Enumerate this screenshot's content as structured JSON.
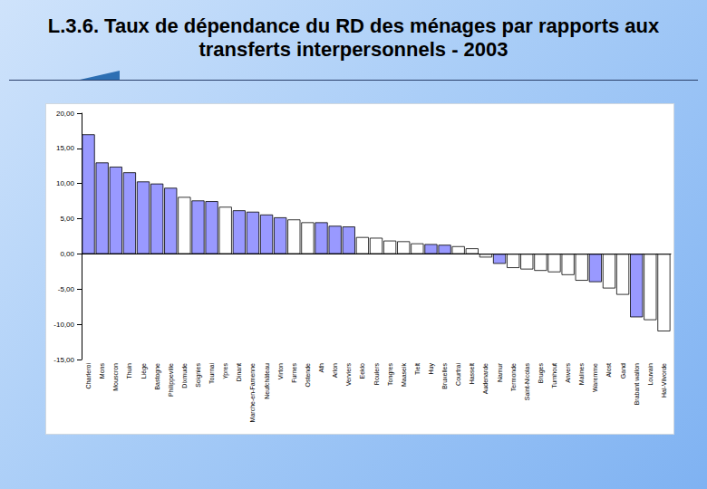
{
  "chart_data": {
    "type": "bar",
    "title": "L.3.6. Taux de dépendance du RD des ménages par rapports aux transferts interpersonnels - 2003",
    "categories": [
      "Charleroi",
      "Mons",
      "Mouscron",
      "Thuin",
      "Liège",
      "Bastogne",
      "Philippeville",
      "Dixmude",
      "Soignies",
      "Tournai",
      "Ypres",
      "Dinant",
      "Marche-en-Famenne",
      "Neufchâteau",
      "Virton",
      "Furnes",
      "Ostende",
      "Ath",
      "Arlon",
      "Verviers",
      "Eeklo",
      "Roulers",
      "Tongres",
      "Maaseik",
      "Tielt",
      "Huy",
      "Bruxelles",
      "Courtrai",
      "Hasselt",
      "Audenarde",
      "Namur",
      "Termonde",
      "Saint-Nicolas",
      "Bruges",
      "Turnhout",
      "Anvers",
      "Malines",
      "Waremme",
      "Alost",
      "Gand",
      "Brabant wallon",
      "Louvain",
      "Hal-Vilvorde"
    ],
    "values": [
      17.0,
      13.0,
      12.4,
      11.6,
      10.3,
      10.0,
      9.4,
      8.1,
      7.6,
      7.5,
      6.7,
      6.2,
      6.0,
      5.6,
      5.2,
      4.9,
      4.5,
      4.5,
      4.0,
      3.9,
      2.4,
      2.3,
      1.9,
      1.8,
      1.5,
      1.4,
      1.3,
      1.1,
      0.8,
      -0.5,
      -1.4,
      -2.0,
      -2.2,
      -2.4,
      -2.6,
      -3.0,
      -3.8,
      -4.0,
      -4.9,
      -5.8,
      -9.0,
      -9.4,
      -11.0
    ],
    "colors": [
      "#9999ff",
      "#9999ff",
      "#9999ff",
      "#9999ff",
      "#9999ff",
      "#9999ff",
      "#9999ff",
      "#ffffff",
      "#9999ff",
      "#9999ff",
      "#ffffff",
      "#9999ff",
      "#9999ff",
      "#9999ff",
      "#9999ff",
      "#ffffff",
      "#ffffff",
      "#9999ff",
      "#9999ff",
      "#9999ff",
      "#ffffff",
      "#ffffff",
      "#ffffff",
      "#ffffff",
      "#ffffff",
      "#9999ff",
      "#9999ff",
      "#ffffff",
      "#ffffff",
      "#ffffff",
      "#9999ff",
      "#ffffff",
      "#ffffff",
      "#ffffff",
      "#ffffff",
      "#ffffff",
      "#ffffff",
      "#9999ff",
      "#ffffff",
      "#ffffff",
      "#9999ff",
      "#ffffff",
      "#ffffff"
    ],
    "ylim": [
      -15,
      20
    ],
    "yticks": [
      {
        "value": -15,
        "label": "-15,00"
      },
      {
        "value": -10,
        "label": "-10,00"
      },
      {
        "value": -5,
        "label": "-5,00"
      },
      {
        "value": 0,
        "label": "0,00"
      },
      {
        "value": 5,
        "label": "5,00"
      },
      {
        "value": 10,
        "label": "10,00"
      },
      {
        "value": 15,
        "label": "15,00"
      },
      {
        "value": 20,
        "label": "20,00"
      }
    ],
    "grid": false
  }
}
